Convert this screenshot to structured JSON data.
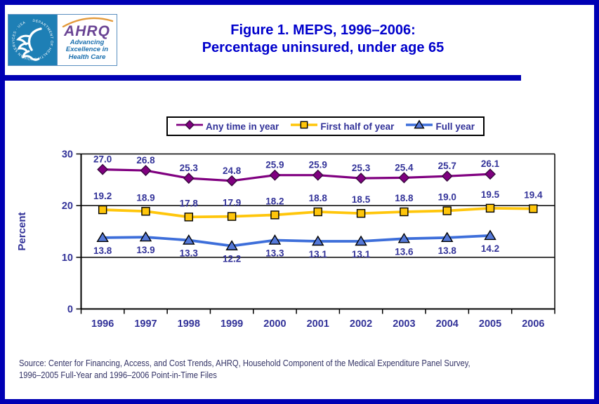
{
  "page": {
    "border_color": "#0000B4",
    "accent_bar_color": "#0000B4",
    "background": "#FFFFFF"
  },
  "header": {
    "title_line1": "Figure 1. MEPS, 1996–2006:",
    "title_line2": "Percentage uninsured, under age 65",
    "title_color": "#0000CC",
    "logo": {
      "org": "AHRQ",
      "tagline_line1": "Advancing",
      "tagline_line2": "Excellence in",
      "tagline_line3": "Health Care",
      "seal_text": "DEPARTMENT OF HEALTH & HUMAN SERVICES · USA",
      "hhs_blue": "#1E7FB5",
      "ahrq_purple": "#6A4494",
      "swoosh_orange": "#E39A3B",
      "tagline_blue": "#1A6FAE"
    }
  },
  "chart_data": {
    "type": "line",
    "title": "Figure 1. MEPS, 1996–2006: Percentage uninsured, under age 65",
    "categories": [
      "1996",
      "1997",
      "1998",
      "1999",
      "2000",
      "2001",
      "2002",
      "2003",
      "2004",
      "2005",
      "2006"
    ],
    "series": [
      {
        "name": "Any time in year",
        "marker": "diamond",
        "color": "#800080",
        "marker_fill": "#800080",
        "marker_stroke": "#38093E",
        "values": [
          27.0,
          26.8,
          25.3,
          24.8,
          25.9,
          25.9,
          25.3,
          25.4,
          25.7,
          26.1,
          null
        ]
      },
      {
        "name": "First half of year",
        "marker": "square",
        "color": "#FFC60B",
        "marker_fill": "#FFC60B",
        "marker_stroke": "#000000",
        "values": [
          19.2,
          18.9,
          17.8,
          17.9,
          18.2,
          18.8,
          18.5,
          18.8,
          19.0,
          19.5,
          19.4
        ]
      },
      {
        "name": "Full year",
        "marker": "triangle",
        "color": "#3D6EDA",
        "marker_fill": "#5579D9",
        "marker_stroke": "#000000",
        "values": [
          13.8,
          13.9,
          13.3,
          12.2,
          13.3,
          13.1,
          13.1,
          13.6,
          13.8,
          14.2,
          null
        ]
      }
    ],
    "xlabel": "",
    "ylabel": "Percent",
    "ylim": [
      0,
      30
    ],
    "yticks": [
      0,
      10,
      20,
      30
    ],
    "grid": "horizontal",
    "legend_position": "top",
    "label_color": "#333399",
    "axis_color": "#000000"
  },
  "source": {
    "line1": "Source: Center for Financing, Access, and Cost Trends, AHRQ, Household Component of the Medical Expenditure Panel Survey,",
    "line2": "1996–2005 Full-Year and 1996–2006 Point-in-Time Files"
  }
}
